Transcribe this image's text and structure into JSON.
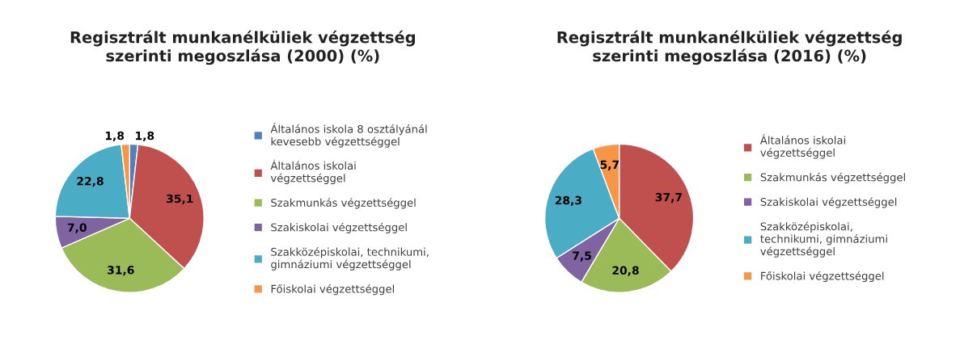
{
  "chart_data": [
    {
      "type": "pie",
      "title": "Regisztrált munkanélküliek végzettség\nszerinti megoszlása (2000) (%)",
      "categories": [
        "Általános iskola 8 osztályánál\nkevesebb végzettséggel",
        "Általános iskolai\nvégzettséggel",
        "Szakmunkás végzettséggel",
        "Szakiskolai végzettséggel",
        "Szakközépiskolai, technikumi,\ngimnáziumi végzettséggel",
        "Főiskolai végzettséggel"
      ],
      "values": [
        1.8,
        35.1,
        31.6,
        7.0,
        22.8,
        1.8
      ],
      "value_labels": [
        "1,8",
        "35,1",
        "31,6",
        "7,0",
        "22,8",
        "1,8"
      ],
      "colors": [
        "#4f81bd",
        "#c0504d",
        "#9bbb59",
        "#8064a2",
        "#4bacc6",
        "#f79646"
      ],
      "legend": "right"
    },
    {
      "type": "pie",
      "title": "Regisztrált munkanélküliek végzettség\nszerinti megoszlása (2016) (%)",
      "categories": [
        "Általános iskolai\nvégzettséggel",
        "Szakmunkás végzettséggel",
        "Szakiskolai végzettséggel",
        "Szakközépiskolai,\ntechnikumi, gimnáziumi\nvégzettséggel",
        "Főiskolai végzettséggel"
      ],
      "values": [
        37.7,
        20.8,
        7.5,
        28.3,
        5.7
      ],
      "value_labels": [
        "37,7",
        "20,8",
        "7,5",
        "28,3",
        "5,7"
      ],
      "colors": [
        "#c0504d",
        "#9bbb59",
        "#8064a2",
        "#4bacc6",
        "#f79646"
      ],
      "legend": "right"
    }
  ]
}
